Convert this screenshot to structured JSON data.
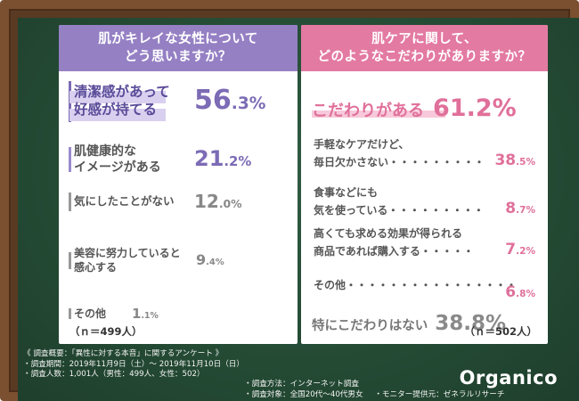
{
  "left": {
    "header": [
      "肌がキレイな女性について",
      "どう思いますか？"
    ],
    "n_label": "（ｎ＝499人）"
  },
  "right": {
    "header": [
      "肌ケアに関して、",
      "どのようなこだわりがありますか？"
    ],
    "n_label": "（ｎ＝502人）"
  },
  "footer": {
    "title": "《 調査概要：「異性に対する本音」に関するアンケート 》",
    "period": "・調査期間：2019年11月9日（土）～ 2019年11月10日（日）",
    "count": "・調査人数：1,001人（男性：499人、女性：502）",
    "method": "・調査方法：インターネット調査",
    "target": "・調査対象：全国20代～40代男女",
    "provider": "・モニター提供元：ゼネラルリサーチ"
  },
  "logo": "Organico",
  "colors": {
    "purple": "#7c6bb5",
    "pink": "#e0709a",
    "gray": "#8a8a8a",
    "board": "#244a34",
    "frame": "#7a5030"
  },
  "chart_data": [
    {
      "type": "bar",
      "title": "肌がキレイな女性についてどう思いますか？",
      "categories": [
        "清潔感があって好感が持てる",
        "肌健康的なイメージがある",
        "気にしたことがない",
        "美容に努力していると感心する",
        "その他"
      ],
      "category_lines": [
        [
          "清潔感があって",
          "好感が持てる"
        ],
        [
          "肌健康的な",
          "イメージがある"
        ],
        [
          "気にしたことがない"
        ],
        [
          "美容に努力していると",
          "感心する"
        ],
        [
          "その他"
        ]
      ],
      "values": [
        56.3,
        21.2,
        12.0,
        9.4,
        1.1
      ],
      "unit": "%",
      "n": 499
    },
    {
      "type": "table",
      "title": "肌ケアに関して、どのようなこだわりがありますか？",
      "main": [
        {
          "label": "こだわりがある",
          "value": 61.2
        },
        {
          "label": "特にこだわりはない",
          "value": 38.8
        }
      ],
      "breakdown": [
        {
          "lines": [
            "手軽なケアだけど、",
            "毎日欠かさない・・・・・・・・・"
          ],
          "value": 38.5
        },
        {
          "lines": [
            "食事などにも",
            "気を使っている・・・・・・・・・"
          ],
          "value": 8.7
        },
        {
          "lines": [
            "高くても求める効果が得られる",
            "商品であれば購入する・・・・・"
          ],
          "value": 7.2
        },
        {
          "lines": [
            "その他・・・・・・・・・・・・・・・・"
          ],
          "value": 6.8
        }
      ],
      "unit": "%",
      "n": 502
    }
  ]
}
